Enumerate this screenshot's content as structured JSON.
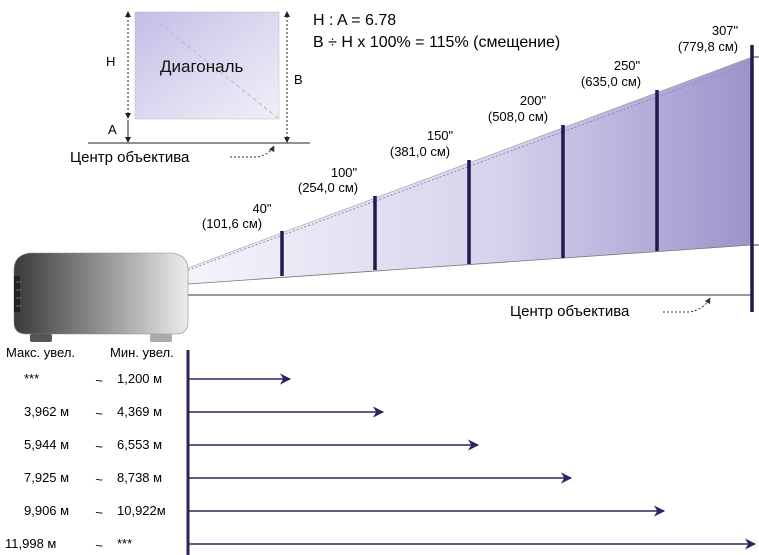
{
  "formulas": {
    "ratio": "H : A = 6.78",
    "offset": "B ÷ H x 100% = 115% (смещение)"
  },
  "inset": {
    "diagonal_label": "Диагональ",
    "h_label": "H",
    "b_label": "B",
    "a_label": "A",
    "lens_center_label": "Центр объектива"
  },
  "lens_center_label": "Центр объектива",
  "screens": [
    {
      "size": "40\"",
      "metric": "(101,6 см)"
    },
    {
      "size": "100\"",
      "metric": "(254,0 см)"
    },
    {
      "size": "150\"",
      "metric": "(381,0 см)"
    },
    {
      "size": "200\"",
      "metric": "(508,0 см)"
    },
    {
      "size": "250\"",
      "metric": "(635,0 см)"
    },
    {
      "size": "307\"",
      "metric": "(779,8 см)"
    }
  ],
  "distance_table": {
    "header_max": "Макс. увел.",
    "header_min": "Мин. увел.",
    "separator": "~",
    "rows": [
      {
        "max": "***",
        "min": "1,200 м"
      },
      {
        "max": "3,962 м",
        "min": "4,369 м"
      },
      {
        "max": "5,944 м",
        "min": "6,553 м"
      },
      {
        "max": "7,925 м",
        "min": "8,738 м"
      },
      {
        "max": "9,906 м",
        "min": "10,922м"
      },
      {
        "max": "11,998 м",
        "min": "***"
      }
    ]
  },
  "colors": {
    "screen_bar": "#1f1a4f",
    "arrow": "#2a2560",
    "beam_light": "#f2f1f8",
    "beam_dark": "#9b91c9",
    "inset_light": "#e9e6f4",
    "inset_dark": "#a89fd6"
  },
  "icons": [
    "projector-icon"
  ]
}
